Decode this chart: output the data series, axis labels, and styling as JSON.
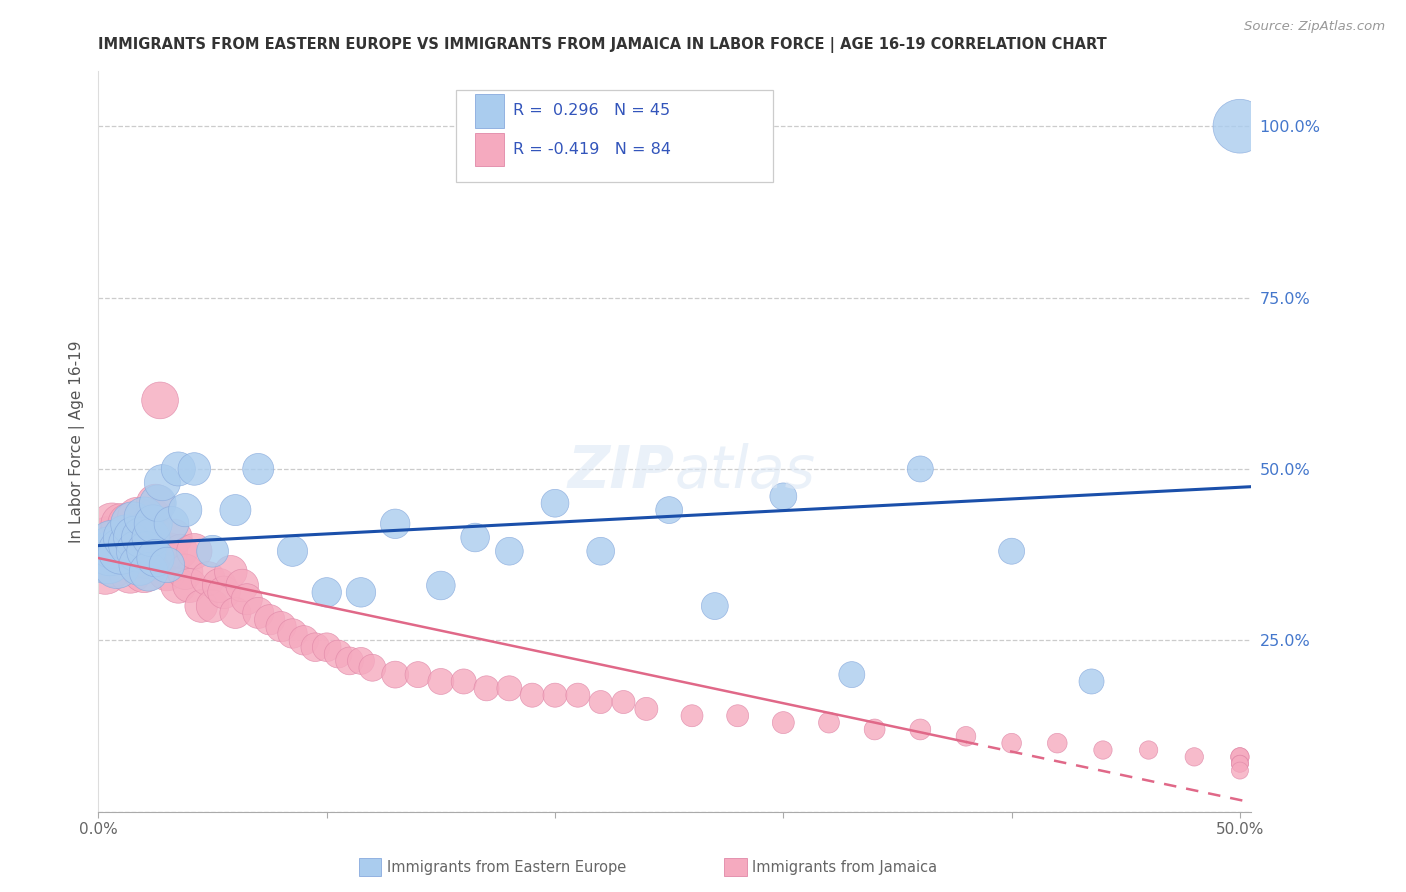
{
  "title": "IMMIGRANTS FROM EASTERN EUROPE VS IMMIGRANTS FROM JAMAICA IN LABOR FORCE | AGE 16-19 CORRELATION CHART",
  "source": "Source: ZipAtlas.com",
  "ylabel": "In Labor Force | Age 16-19",
  "xlim": [
    0.0,
    0.505
  ],
  "ylim": [
    0.0,
    1.08
  ],
  "background_color": "#ffffff",
  "eastern_europe_color": "#aaccee",
  "eastern_europe_edge": "#88aadd",
  "jamaica_color": "#f5aabf",
  "jamaica_edge": "#e088a8",
  "blue_line_color": "#1a4faa",
  "pink_line_color": "#e06888",
  "grid_color": "#cccccc",
  "R_blue": 0.296,
  "N_blue": 45,
  "R_pink": -0.419,
  "N_pink": 84,
  "legend_text_color": "#3355bb",
  "eastern_europe_x": [
    0.004,
    0.005,
    0.006,
    0.008,
    0.01,
    0.012,
    0.014,
    0.015,
    0.016,
    0.017,
    0.018,
    0.019,
    0.02,
    0.021,
    0.022,
    0.023,
    0.024,
    0.025,
    0.026,
    0.028,
    0.03,
    0.032,
    0.035,
    0.038,
    0.042,
    0.05,
    0.06,
    0.07,
    0.085,
    0.1,
    0.115,
    0.13,
    0.15,
    0.165,
    0.18,
    0.2,
    0.22,
    0.25,
    0.27,
    0.3,
    0.33,
    0.36,
    0.4,
    0.435,
    0.5
  ],
  "eastern_europe_y": [
    0.37,
    0.38,
    0.39,
    0.36,
    0.38,
    0.4,
    0.39,
    0.42,
    0.4,
    0.38,
    0.36,
    0.4,
    0.43,
    0.38,
    0.35,
    0.4,
    0.42,
    0.37,
    0.45,
    0.48,
    0.36,
    0.42,
    0.5,
    0.44,
    0.5,
    0.38,
    0.44,
    0.5,
    0.38,
    0.32,
    0.32,
    0.42,
    0.33,
    0.4,
    0.38,
    0.45,
    0.38,
    0.44,
    0.3,
    0.46,
    0.2,
    0.5,
    0.38,
    0.19,
    1.0
  ],
  "eastern_europe_sizes": [
    55,
    50,
    48,
    46,
    44,
    42,
    40,
    40,
    38,
    36,
    35,
    34,
    33,
    32,
    31,
    30,
    30,
    29,
    28,
    27,
    26,
    25,
    24,
    23,
    22,
    21,
    20,
    20,
    19,
    18,
    18,
    18,
    17,
    17,
    16,
    16,
    16,
    15,
    15,
    15,
    14,
    14,
    14,
    13,
    60
  ],
  "jamaica_x": [
    0.003,
    0.004,
    0.005,
    0.006,
    0.007,
    0.008,
    0.009,
    0.01,
    0.011,
    0.012,
    0.013,
    0.014,
    0.015,
    0.016,
    0.017,
    0.018,
    0.019,
    0.02,
    0.021,
    0.022,
    0.023,
    0.024,
    0.025,
    0.026,
    0.027,
    0.028,
    0.03,
    0.031,
    0.032,
    0.033,
    0.035,
    0.036,
    0.038,
    0.04,
    0.042,
    0.045,
    0.048,
    0.05,
    0.053,
    0.055,
    0.058,
    0.06,
    0.063,
    0.065,
    0.07,
    0.075,
    0.08,
    0.085,
    0.09,
    0.095,
    0.1,
    0.105,
    0.11,
    0.115,
    0.12,
    0.13,
    0.14,
    0.15,
    0.16,
    0.17,
    0.18,
    0.19,
    0.2,
    0.21,
    0.22,
    0.23,
    0.24,
    0.26,
    0.28,
    0.3,
    0.32,
    0.34,
    0.36,
    0.38,
    0.4,
    0.42,
    0.44,
    0.46,
    0.48,
    0.5,
    0.5,
    0.5,
    0.5,
    0.5
  ],
  "jamaica_y": [
    0.35,
    0.38,
    0.4,
    0.42,
    0.36,
    0.38,
    0.4,
    0.42,
    0.38,
    0.4,
    0.42,
    0.35,
    0.37,
    0.4,
    0.43,
    0.38,
    0.36,
    0.35,
    0.37,
    0.39,
    0.41,
    0.43,
    0.45,
    0.38,
    0.6,
    0.37,
    0.35,
    0.38,
    0.36,
    0.4,
    0.33,
    0.38,
    0.35,
    0.33,
    0.38,
    0.3,
    0.34,
    0.3,
    0.33,
    0.32,
    0.35,
    0.29,
    0.33,
    0.31,
    0.29,
    0.28,
    0.27,
    0.26,
    0.25,
    0.24,
    0.24,
    0.23,
    0.22,
    0.22,
    0.21,
    0.2,
    0.2,
    0.19,
    0.19,
    0.18,
    0.18,
    0.17,
    0.17,
    0.17,
    0.16,
    0.16,
    0.15,
    0.14,
    0.14,
    0.13,
    0.13,
    0.12,
    0.12,
    0.11,
    0.1,
    0.1,
    0.09,
    0.09,
    0.08,
    0.08,
    0.08,
    0.07,
    0.07,
    0.06
  ],
  "jamaica_sizes": [
    42,
    40,
    38,
    36,
    40,
    38,
    36,
    34,
    38,
    36,
    34,
    38,
    36,
    34,
    32,
    34,
    32,
    36,
    34,
    32,
    30,
    28,
    30,
    28,
    28,
    26,
    30,
    28,
    26,
    28,
    26,
    24,
    26,
    24,
    26,
    22,
    24,
    22,
    24,
    22,
    22,
    20,
    22,
    20,
    20,
    19,
    19,
    18,
    18,
    17,
    17,
    16,
    16,
    15,
    15,
    15,
    14,
    14,
    13,
    13,
    13,
    12,
    12,
    12,
    11,
    11,
    11,
    10,
    10,
    10,
    9,
    9,
    9,
    8,
    8,
    8,
    7,
    7,
    7,
    7,
    7,
    6,
    6,
    6
  ]
}
